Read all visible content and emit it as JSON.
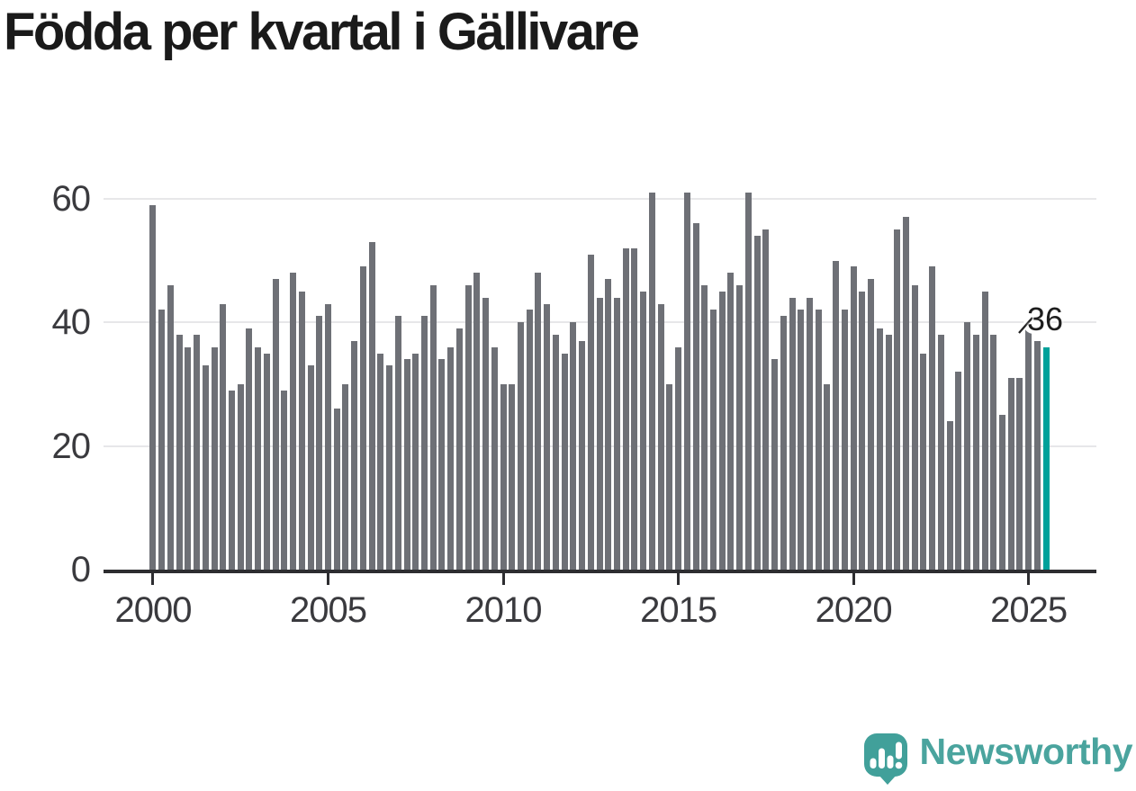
{
  "title": "Födda per kvartal i Gällivare",
  "chart_data": {
    "type": "bar",
    "title": "Födda per kvartal i Gällivare",
    "x_start": "2000 Q1",
    "x_end": "2025 Q3",
    "frequency": "quarterly",
    "values": [
      59,
      42,
      46,
      38,
      36,
      38,
      33,
      36,
      43,
      29,
      30,
      39,
      36,
      35,
      47,
      29,
      48,
      45,
      33,
      41,
      43,
      26,
      30,
      37,
      49,
      53,
      35,
      33,
      41,
      34,
      35,
      41,
      46,
      34,
      36,
      39,
      46,
      48,
      44,
      36,
      30,
      30,
      40,
      42,
      48,
      43,
      38,
      35,
      40,
      37,
      51,
      44,
      47,
      44,
      52,
      52,
      45,
      61,
      43,
      30,
      36,
      61,
      56,
      46,
      42,
      45,
      48,
      46,
      61,
      54,
      55,
      34,
      41,
      44,
      42,
      44,
      42,
      30,
      50,
      42,
      49,
      45,
      47,
      39,
      38,
      55,
      57,
      46,
      35,
      49,
      38,
      24,
      32,
      40,
      38,
      45,
      38,
      25,
      31,
      31,
      40,
      37,
      36
    ],
    "x_tick_labels": [
      "2000",
      "2005",
      "2010",
      "2015",
      "2020",
      "2025"
    ],
    "x_tick_indices": [
      0,
      20,
      40,
      60,
      80,
      100
    ],
    "y_ticks": [
      0,
      20,
      40,
      60
    ],
    "ylim": [
      0,
      63
    ],
    "grid": "horizontal",
    "legend": "none",
    "bar_color": "#6e7076",
    "highlight_color": "#00a19a",
    "highlight": {
      "index": 102,
      "quarter": "2025 Q3",
      "value": 36,
      "label": "36"
    }
  },
  "branding": {
    "logo_text": "Newsworthy",
    "brand_color": "#4aa49e"
  }
}
